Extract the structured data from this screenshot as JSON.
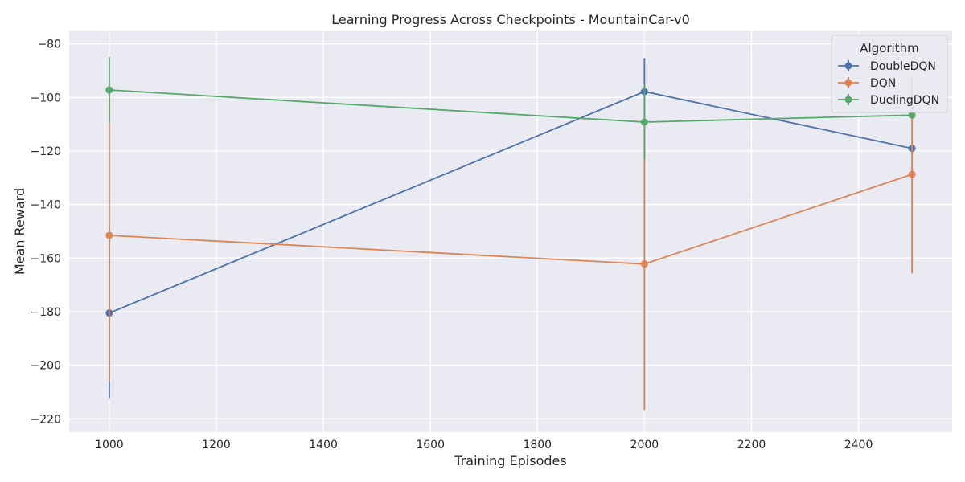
{
  "chart_data": {
    "type": "line",
    "title": "Learning Progress Across Checkpoints - MountainCar-v0",
    "xlabel": "Training Episodes",
    "ylabel": "Mean Reward",
    "xlim": [
      925,
      2575
    ],
    "ylim": [
      -225,
      -75
    ],
    "xticks": [
      1000,
      1200,
      1400,
      1600,
      1800,
      2000,
      2200,
      2400
    ],
    "yticks": [
      -80,
      -100,
      -120,
      -140,
      -160,
      -180,
      -200,
      -220
    ],
    "grid": true,
    "x": [
      1000,
      2000,
      2500
    ],
    "series": [
      {
        "name": "DoubleDQN",
        "color": "#4c72b0",
        "values": [
          -180.5,
          -97.8,
          -119.0
        ],
        "err": [
          32.0,
          12.5,
          0.0
        ]
      },
      {
        "name": "DQN",
        "color": "#dd8452",
        "values": [
          -151.5,
          -162.2,
          -128.7
        ],
        "err": [
          54.5,
          54.5,
          37.0
        ]
      },
      {
        "name": "DuelingDQN",
        "color": "#55a868",
        "values": [
          -97.2,
          -109.2,
          -106.6
        ],
        "err": [
          12.2,
          14.0,
          0.0
        ]
      }
    ],
    "legend": {
      "title": "Algorithm",
      "position": "top-right"
    }
  }
}
